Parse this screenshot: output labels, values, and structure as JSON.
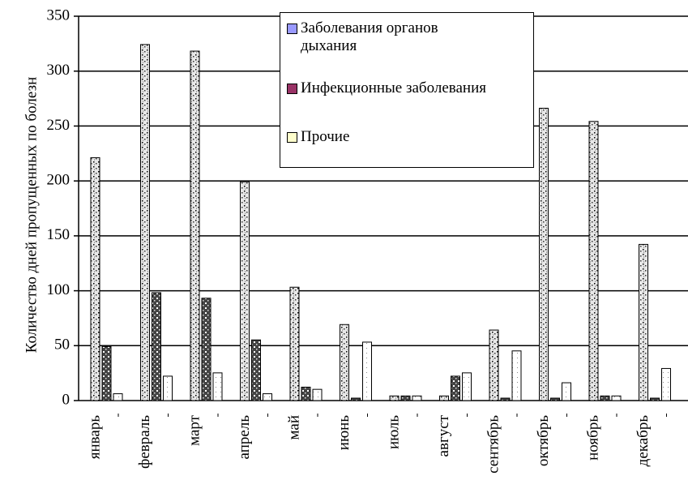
{
  "chart_data": {
    "type": "bar",
    "ylabel": "Количество дней пропущенных по болезн",
    "categories": [
      "январь",
      "февраль",
      "март",
      "апрель",
      "май",
      "июнь",
      "июль",
      "август",
      "сентябрь",
      "октябрь",
      "ноябрь",
      "декабрь"
    ],
    "series": [
      {
        "name": "Заболевания органов дыхания",
        "color": "#9999ff",
        "values": [
          219,
          322,
          316,
          197,
          101,
          67,
          2,
          2,
          62,
          264,
          252,
          140
        ]
      },
      {
        "name": "Инфекционные заболевания",
        "color": "#993366",
        "values": [
          47,
          96,
          91,
          53,
          10,
          0,
          2,
          20,
          0,
          0,
          2,
          0
        ]
      },
      {
        "name": "Прочие",
        "color": "#ffffcc",
        "values": [
          4,
          20,
          23,
          4,
          8,
          51,
          2,
          23,
          43,
          14,
          2,
          27
        ]
      }
    ],
    "ylim": [
      0,
      350
    ],
    "yticks": [
      0,
      50,
      100,
      150,
      200,
      250,
      300,
      350
    ],
    "grid": true
  }
}
